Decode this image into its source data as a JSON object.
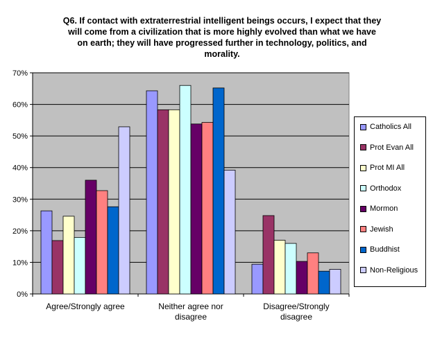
{
  "chart_data": {
    "type": "bar",
    "title": "Q6. If contact with extraterrestrial intelligent beings occurs, I expect that they will come from a civilization that is more highly evolved than what we have on earth; they will have progressed further in technology, politics, and morality.",
    "title_lines": [
      "Q6. If contact with extraterrestrial intelligent beings occurs, I expect that they",
      "will come from a civilization that is more highly evolved than what we have",
      "on earth; they will have progressed further in technology, politics, and",
      "morality."
    ],
    "categories": [
      "Agree/Strongly agree",
      "Neither agree nor disagree",
      "Disagree/Strongly disagree"
    ],
    "category_lines": [
      [
        "Agree/Strongly agree"
      ],
      [
        "Neither agree nor",
        "disagree"
      ],
      [
        "Disagree/Strongly",
        "disagree"
      ]
    ],
    "ylim": [
      0,
      70
    ],
    "y_ticks": [
      "0%",
      "10%",
      "20%",
      "30%",
      "40%",
      "50%",
      "60%",
      "70%"
    ],
    "grid": true,
    "legend_position": "right",
    "series": [
      {
        "name": "Catholics All",
        "color": "#9999ff",
        "values": [
          26.3,
          64.3,
          9.4
        ]
      },
      {
        "name": "Prot Evan All",
        "color": "#993366",
        "values": [
          16.9,
          58.3,
          24.8
        ]
      },
      {
        "name": "Prot MI All",
        "color": "#ffffcc",
        "values": [
          24.6,
          58.3,
          17.0
        ]
      },
      {
        "name": "Orthodox",
        "color": "#ccffff",
        "values": [
          17.9,
          66.0,
          16.0
        ]
      },
      {
        "name": "Mormon",
        "color": "#660066",
        "values": [
          36.0,
          53.8,
          10.3
        ]
      },
      {
        "name": "Jewish",
        "color": "#ff8080",
        "values": [
          32.7,
          54.3,
          13.0
        ]
      },
      {
        "name": "Buddhist",
        "color": "#0066cc",
        "values": [
          27.6,
          65.2,
          7.2
        ]
      },
      {
        "name": "Non-Religious",
        "color": "#ccccff",
        "values": [
          52.9,
          39.2,
          7.8
        ]
      }
    ]
  }
}
